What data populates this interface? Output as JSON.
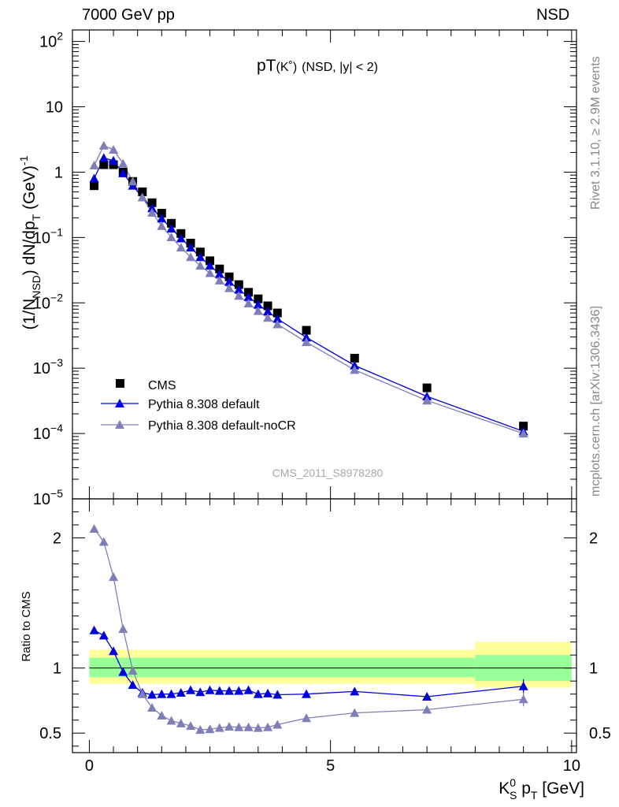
{
  "header": {
    "energy_label": "7000 GeV pp",
    "process_label": "NSD"
  },
  "side_labels": {
    "rivet": "Rivet 3.1.10, ≥ 2.9M events",
    "source": "mcplots.cern.ch [arXiv:1306.3436]"
  },
  "chart_data": [
    {
      "type": "scatter",
      "title": "pT(K˚) (NSD, |y| < 2)",
      "title_main": "pT",
      "title_particle": "(K˚)",
      "title_cut": "(NSD, |y| < 2)",
      "ylabel": "(1/N_NSD) dN/dp_T (GeV)^-1",
      "ylabel_parts": {
        "a": "(1/N",
        "b": "NSD",
        "c": ") dN/dp",
        "d": "T",
        "e": " (GeV)",
        "f": "-1"
      },
      "yscale": "log",
      "ylim": [
        1e-05,
        150
      ],
      "xlim": [
        -0.35,
        10.1
      ],
      "y_tick_labels": [
        {
          "base": "10",
          "exp": "2",
          "value": 100
        },
        {
          "base": "10",
          "exp": "",
          "value": 10
        },
        {
          "base": "1",
          "exp": "",
          "value": 1
        },
        {
          "base": "10",
          "exp": "−1",
          "value": 0.1
        },
        {
          "base": "10",
          "exp": "−2",
          "value": 0.01
        },
        {
          "base": "10",
          "exp": "−3",
          "value": 0.001
        },
        {
          "base": "10",
          "exp": "−4",
          "value": 0.0001
        },
        {
          "base": "10",
          "exp": "−5",
          "value": 1e-05
        }
      ],
      "watermark": "CMS_2011_S8978280",
      "legend": {
        "position": "bottom-left",
        "entries": [
          {
            "label": "CMS",
            "color": "#000000",
            "marker": "square"
          },
          {
            "label": "Pythia 8.308 default",
            "color": "#0000dd",
            "marker": "triangle"
          },
          {
            "label": "Pythia 8.308 default-noCR",
            "color": "#7f7fb8",
            "marker": "triangle"
          }
        ]
      },
      "series": [
        {
          "name": "CMS",
          "color": "#000000",
          "x": [
            0.1,
            0.3,
            0.5,
            0.7,
            0.9,
            1.1,
            1.3,
            1.5,
            1.7,
            1.9,
            2.1,
            2.3,
            2.5,
            2.7,
            2.9,
            3.1,
            3.3,
            3.5,
            3.7,
            3.9,
            4.5,
            5.5,
            7.0,
            9.0
          ],
          "y": [
            0.62,
            1.3,
            1.3,
            1.0,
            0.72,
            0.5,
            0.34,
            0.235,
            0.165,
            0.115,
            0.082,
            0.06,
            0.044,
            0.033,
            0.025,
            0.019,
            0.0145,
            0.0115,
            0.009,
            0.007,
            0.0038,
            0.00142,
            0.0005,
            0.00013
          ]
        },
        {
          "name": "Pythia 8.308 default",
          "color": "#0000dd",
          "x": [
            0.1,
            0.3,
            0.5,
            0.7,
            0.9,
            1.1,
            1.3,
            1.5,
            1.7,
            1.9,
            2.1,
            2.3,
            2.5,
            2.7,
            2.9,
            3.1,
            3.3,
            3.5,
            3.7,
            3.9,
            4.5,
            5.5,
            7.0,
            9.0
          ],
          "y": [
            0.8,
            1.65,
            1.5,
            0.96,
            0.62,
            0.41,
            0.28,
            0.195,
            0.137,
            0.097,
            0.07,
            0.05,
            0.037,
            0.0277,
            0.021,
            0.016,
            0.0123,
            0.0094,
            0.0074,
            0.0057,
            0.00295,
            0.0011,
            0.00037,
            0.000108
          ]
        },
        {
          "name": "Pythia 8.308 default-noCR",
          "color": "#7f7fb8",
          "x": [
            0.1,
            0.3,
            0.5,
            0.7,
            0.9,
            1.1,
            1.3,
            1.5,
            1.7,
            1.9,
            2.1,
            2.3,
            2.5,
            2.7,
            2.9,
            3.1,
            3.3,
            3.5,
            3.7,
            3.9,
            4.5,
            5.5,
            7.0,
            9.0
          ],
          "y": [
            1.27,
            2.55,
            2.2,
            1.35,
            0.72,
            0.41,
            0.24,
            0.15,
            0.101,
            0.07,
            0.05,
            0.037,
            0.0285,
            0.022,
            0.0168,
            0.0128,
            0.0098,
            0.0075,
            0.0059,
            0.0047,
            0.0025,
            0.00094,
            0.00032,
            0.0001
          ]
        }
      ]
    },
    {
      "type": "line",
      "ylabel": "Ratio to CMS",
      "xlabel": "K⁰S pT [GeV]",
      "xlabel_parts": {
        "k": "K",
        "sup": "0",
        "sub": "S",
        "p": " p",
        "t": "T",
        "unit": " [GeV]"
      },
      "xlim": [
        -0.35,
        10.1
      ],
      "ylim": [
        0.35,
        2.3
      ],
      "x_ticks": [
        0,
        5,
        10
      ],
      "x_tick_labels": [
        "0",
        "5",
        "10"
      ],
      "y_ticks": [
        0.5,
        1,
        2
      ],
      "y_tick_labels": [
        "0.5",
        "1",
        "2"
      ],
      "bands": {
        "stat_color": "#99ff99",
        "syst_color": "#ffff99",
        "segments": [
          {
            "x0": 0.0,
            "x1": 8.0,
            "inner": [
              0.93,
              1.08
            ],
            "outer": [
              0.88,
              1.14
            ]
          },
          {
            "x0": 8.0,
            "x1": 10.0,
            "inner": [
              0.9,
              1.1
            ],
            "outer": [
              0.85,
              1.2
            ]
          }
        ]
      },
      "series": [
        {
          "name": "Pythia 8.308 default",
          "color": "#0000dd",
          "x": [
            0.1,
            0.3,
            0.5,
            0.7,
            0.9,
            1.1,
            1.3,
            1.5,
            1.7,
            1.9,
            2.1,
            2.3,
            2.5,
            2.7,
            2.9,
            3.1,
            3.3,
            3.5,
            3.7,
            3.9,
            4.5,
            5.5,
            7.0,
            9.0
          ],
          "y": [
            1.29,
            1.25,
            1.13,
            0.97,
            0.87,
            0.81,
            0.795,
            0.8,
            0.8,
            0.81,
            0.83,
            0.815,
            0.83,
            0.825,
            0.825,
            0.825,
            0.83,
            0.8,
            0.805,
            0.795,
            0.8,
            0.82,
            0.78,
            0.86
          ]
        },
        {
          "name": "Pythia 8.308 default-noCR",
          "color": "#7f7fb8",
          "x": [
            0.1,
            0.3,
            0.5,
            0.7,
            0.9,
            1.1,
            1.3,
            1.5,
            1.7,
            1.9,
            2.1,
            2.3,
            2.5,
            2.7,
            2.9,
            3.1,
            3.3,
            3.5,
            3.7,
            3.9,
            4.5,
            5.5,
            7.0,
            9.0
          ],
          "y": [
            2.07,
            1.97,
            1.7,
            1.3,
            0.98,
            0.8,
            0.695,
            0.635,
            0.595,
            0.575,
            0.555,
            0.525,
            0.53,
            0.54,
            0.55,
            0.545,
            0.545,
            0.54,
            0.545,
            0.565,
            0.615,
            0.655,
            0.68,
            0.76
          ]
        }
      ]
    }
  ]
}
